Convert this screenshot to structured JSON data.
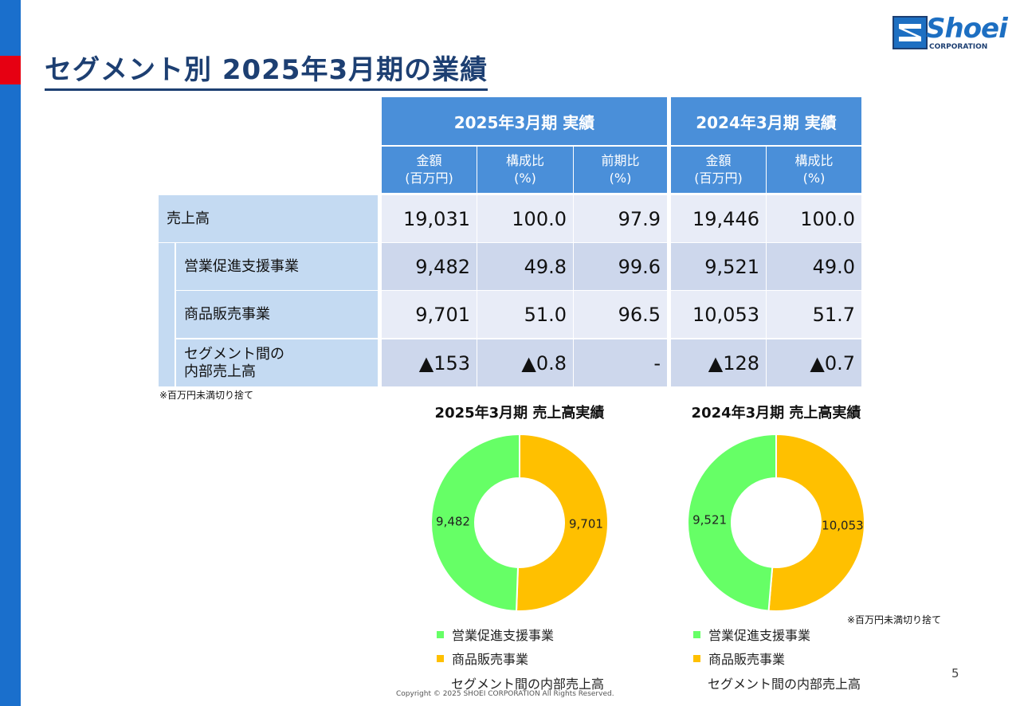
{
  "title": "セグメント別 2025年3月期の業績",
  "logo": {
    "word": "Shoei",
    "sub": "CORPORATION"
  },
  "table": {
    "group_headers": [
      "2025年3月期 実績",
      "2024年3月期 実績"
    ],
    "sub_headers": [
      "金額\n(百万円)",
      "構成比\n(%)",
      "前期比\n(%)",
      "金額\n(百万円)",
      "構成比\n(%)"
    ],
    "rows": [
      {
        "label": "売上高",
        "values": [
          "19,031",
          "100.0",
          "97.9",
          "19,446",
          "100.0"
        ]
      },
      {
        "label": "営業促進支援事業",
        "values": [
          "9,482",
          "49.8",
          "99.6",
          "9,521",
          "49.0"
        ]
      },
      {
        "label": "商品販売事業",
        "values": [
          "9,701",
          "51.0",
          "96.5",
          "10,053",
          "51.7"
        ]
      },
      {
        "label": "セグメント間の\n内部売上高",
        "values": [
          "▲153",
          "▲0.8",
          "-",
          "▲128",
          "▲0.7"
        ]
      }
    ],
    "note": "※百万円未満切り捨て"
  },
  "chart_data": [
    {
      "type": "pie",
      "title": "2025年3月期 売上高実績",
      "categories": [
        "商品販売事業",
        "営業促進支援事業"
      ],
      "values": [
        9701,
        9482
      ],
      "labels": [
        "9,701",
        "9,482"
      ],
      "colors": [
        "#ffc000",
        "#66ff66"
      ],
      "donut": true,
      "legend": {
        "position": "bottom",
        "entries": [
          "営業促進支援事業",
          "商品販売事業",
          "セグメント間の内部売上高"
        ]
      }
    },
    {
      "type": "pie",
      "title": "2024年3月期 売上高実績",
      "categories": [
        "商品販売事業",
        "営業促進支援事業"
      ],
      "values": [
        10053,
        9521
      ],
      "labels": [
        "10,053",
        "9,521"
      ],
      "colors": [
        "#ffc000",
        "#66ff66"
      ],
      "donut": true,
      "legend": {
        "position": "bottom",
        "entries": [
          "営業促進支援事業",
          "商品販売事業",
          "セグメント間の内部売上高"
        ]
      }
    }
  ],
  "chart_note": "※百万円未満切り捨て",
  "page_number": "5",
  "copyright": "Copyright © 2025 SHOEI CORPORATION All Rights Reserved."
}
